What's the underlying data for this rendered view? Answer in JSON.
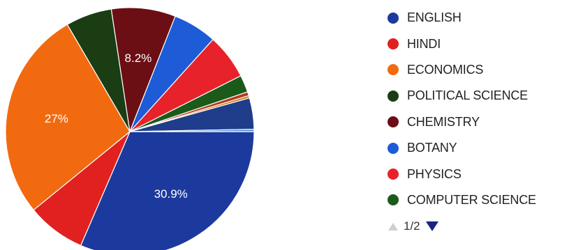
{
  "chart_data": {
    "type": "pie",
    "title": "",
    "series": [
      {
        "name": "ENGLISH",
        "value": 30.9,
        "color": "#1c3a9e"
      },
      {
        "name": "HINDI",
        "value": 7.5,
        "color": "#e0211f"
      },
      {
        "name": "ECONOMICS",
        "value": 27.0,
        "color": "#f26a10"
      },
      {
        "name": "POLITICAL SCIENCE",
        "value": 5.9,
        "color": "#1a3d14"
      },
      {
        "name": "CHEMISTRY",
        "value": 8.2,
        "color": "#6b0f14"
      },
      {
        "name": "BOTANY",
        "value": 5.6,
        "color": "#1e5bd6"
      },
      {
        "name": "PHYSICS",
        "value": 5.8,
        "color": "#e8222a"
      },
      {
        "name": "COMPUTER SCIENCE",
        "value": 2.2,
        "color": "#1c5a1a"
      },
      {
        "name": "",
        "value": 0.5,
        "color": "#b43a1d"
      },
      {
        "name": "",
        "value": 0.3,
        "color": "#d07a12"
      },
      {
        "name": "",
        "value": 4.0,
        "color": "#1f3d8a"
      },
      {
        "name": "",
        "value": 0.3,
        "color": "#5a8fd6"
      }
    ],
    "data_labels": [
      {
        "series": "ENGLISH",
        "text": "30.9%"
      },
      {
        "series": "ECONOMICS",
        "text": "27%"
      },
      {
        "series": "CHEMISTRY",
        "text": "8.2%"
      }
    ],
    "legend_position": "right"
  },
  "legend": {
    "items": [
      {
        "label": "ENGLISH",
        "color": "#1c3a9e"
      },
      {
        "label": "HINDI",
        "color": "#e0211f"
      },
      {
        "label": "ECONOMICS",
        "color": "#f26a10"
      },
      {
        "label": "POLITICAL SCIENCE",
        "color": "#1a3d14"
      },
      {
        "label": "CHEMISTRY",
        "color": "#6b0f14"
      },
      {
        "label": "BOTANY",
        "color": "#1e5bd6"
      },
      {
        "label": "PHYSICS",
        "color": "#e8222a"
      },
      {
        "label": "COMPUTER SCIENCE",
        "color": "#1c5a1a"
      }
    ],
    "pager": {
      "text": "1/2",
      "prev_icon": "triangle-up-icon",
      "next_icon": "triangle-down-icon"
    }
  }
}
